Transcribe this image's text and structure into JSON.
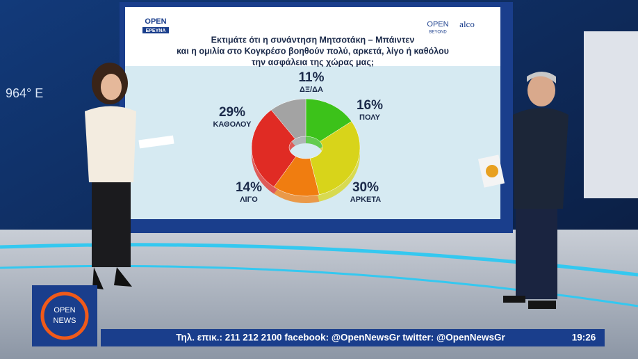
{
  "background_text": "964° E",
  "header": {
    "logo_left": "OPEN",
    "logo_left_sub": "ΕΡΕΥΝΑ",
    "logo_right": "OPEN",
    "logo_right_sub": "BEYOND",
    "partner": "alco"
  },
  "chart_data": {
    "type": "pie",
    "title": [
      "Εκτιμάτε ότι η συνάντηση Μητσοτάκη – Μπάιντεν",
      "και η ομιλία στο Κογκρέσο βοηθούν πολύ, αρκετά, λίγο ή καθόλου",
      "την ασφάλεια της χώρας μας;"
    ],
    "categories": [
      "ΠΟΛΥ",
      "ΑΡΚΕΤΑ",
      "ΛΙΓΟ",
      "ΚΑΘΟΛΟΥ",
      "ΔΞ/ΔΑ"
    ],
    "values": [
      16,
      30,
      14,
      29,
      11
    ],
    "value_labels": [
      "16%",
      "30%",
      "14%",
      "29%",
      "11%"
    ],
    "colors": [
      "#3cc21a",
      "#d8d41a",
      "#f07d10",
      "#e02b24",
      "#a3a3a3"
    ]
  },
  "footer": {
    "logo_top": "OPEN",
    "logo_bottom": "NEWS",
    "ticker": "Τηλ. επικ.: 211 212 2100 facebook: @OpenNewsGr twitter: @OpenNewsGr",
    "clock": "19:26"
  }
}
